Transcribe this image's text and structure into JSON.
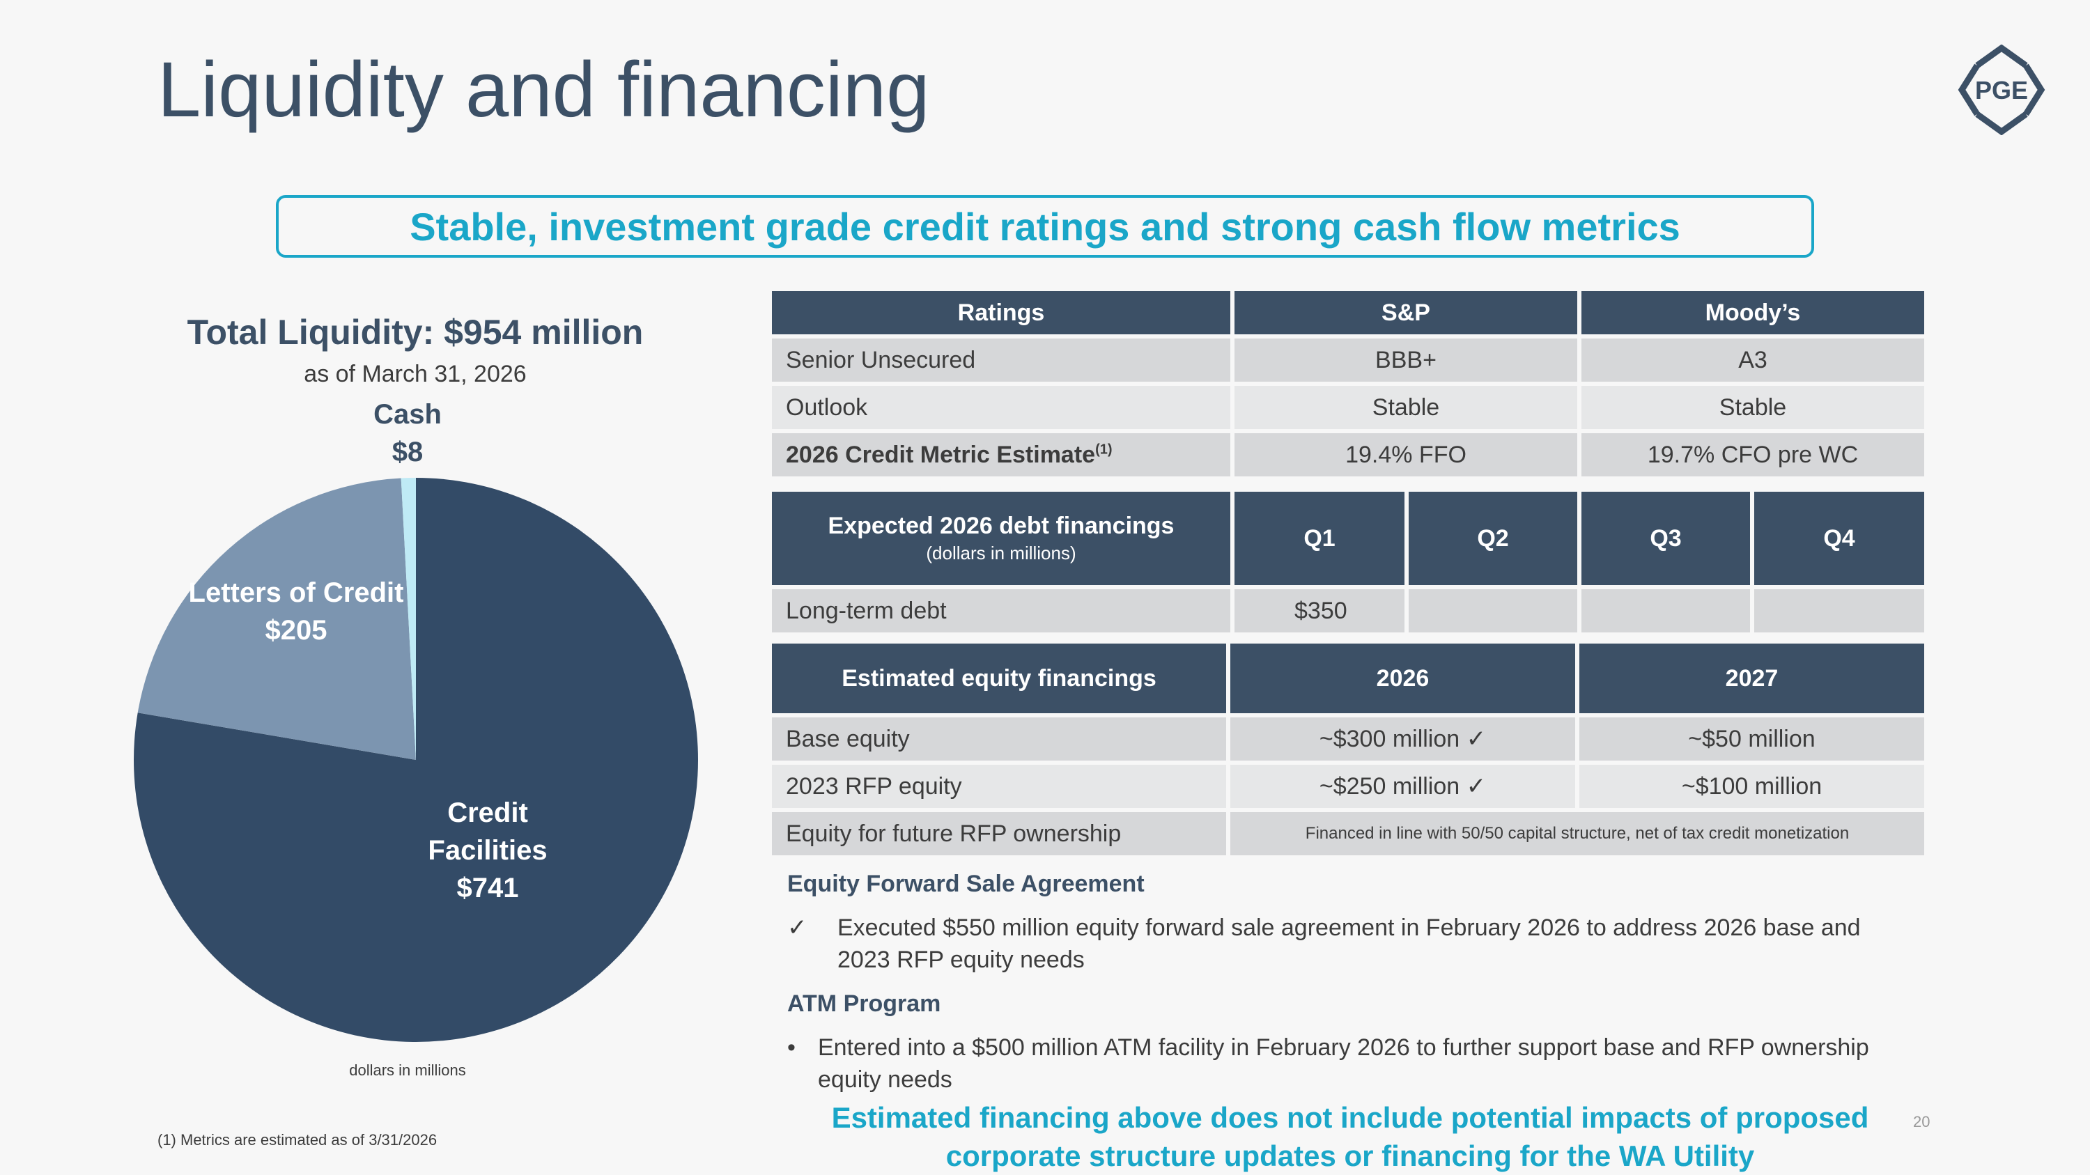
{
  "slide": {
    "title": "Liquidity and financing",
    "logo_text": "PGE",
    "banner": "Stable, investment grade credit ratings and strong cash flow metrics",
    "page_number": "20"
  },
  "liquidity": {
    "title": "Total Liquidity: $954 million",
    "subtitle": "as of March 31, 2026",
    "cash_label": "Cash",
    "cash_value": "$8",
    "loc_label": "Letters of Credit $205",
    "cf_label_1": "Credit",
    "cf_label_2": "Facilities",
    "cf_value": "$741",
    "units_note": "dollars in millions"
  },
  "chart_data": {
    "type": "pie",
    "title": "Total Liquidity: $954 million",
    "categories": [
      "Credit Facilities",
      "Letters of Credit",
      "Cash"
    ],
    "values": [
      741,
      205,
      8
    ],
    "colors": [
      "#334b67",
      "#7c95b0",
      "#bfeaf5"
    ]
  },
  "ratings": {
    "headers": [
      "Ratings",
      "S&P",
      "Moody’s"
    ],
    "rows": [
      [
        "Senior Unsecured",
        "BBB+",
        "A3"
      ],
      [
        "Outlook",
        "Stable",
        "Stable"
      ]
    ],
    "metric_label": "2026 Credit Metric Estimate",
    "metric_sup": "(1)",
    "metric_sp": "19.4% FFO",
    "metric_moodys": "19.7% CFO pre WC"
  },
  "debt": {
    "header": "Expected 2026 debt financings",
    "header_sub": "(dollars in millions)",
    "quarters": [
      "Q1",
      "Q2",
      "Q3",
      "Q4"
    ],
    "row_label": "Long-term debt",
    "row_values": [
      "$350",
      "",
      "",
      ""
    ]
  },
  "equity": {
    "headers": [
      "Estimated equity financings",
      "2026",
      "2027"
    ],
    "rows": [
      [
        "Base equity",
        "~$300 million ✓",
        "~$50 million"
      ],
      [
        "2023 RFP equity",
        "~$250 million ✓",
        "~$100 million"
      ]
    ],
    "future_label": "Equity for future RFP ownership",
    "future_value": "Financed in line with 50/50 capital structure, net of tax credit monetization"
  },
  "forward_sale": {
    "heading": "Equity Forward Sale Agreement",
    "mark": "✓",
    "text": "Executed $550 million equity forward sale agreement in February 2026 to address 2026 base and 2023 RFP equity needs"
  },
  "atm": {
    "heading": "ATM Program",
    "mark": "•",
    "text": "Entered into a $500 million ATM facility in February 2026 to further support base and RFP ownership equity needs"
  },
  "bottom_note": "Estimated financing above does not include potential impacts of proposed corporate structure updates or financing for the WA Utility",
  "footnote": "(1)    Metrics are estimated as of 3/31/2026"
}
